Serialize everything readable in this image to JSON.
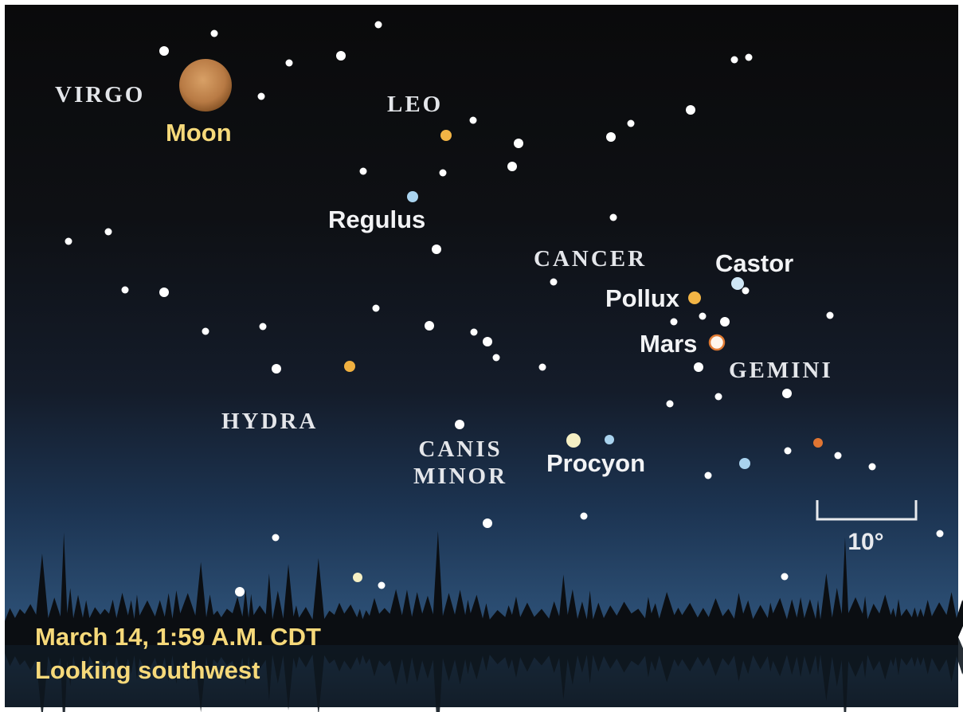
{
  "constellations": {
    "virgo": "VIRGO",
    "leo": "LEO",
    "cancer": "CANCER",
    "gemini": "GEMINI",
    "hydra": "HYDRA",
    "canis_minor": [
      "CANIS",
      "MINOR"
    ]
  },
  "objects": {
    "moon": "Moon",
    "regulus": "Regulus",
    "castor": "Castor",
    "pollux": "Pollux",
    "mars": "Mars",
    "procyon": "Procyon"
  },
  "scale_label": "10°",
  "caption": {
    "date": "March 14, 1:59 A.M. CDT",
    "direction": "Looking southwest"
  }
}
